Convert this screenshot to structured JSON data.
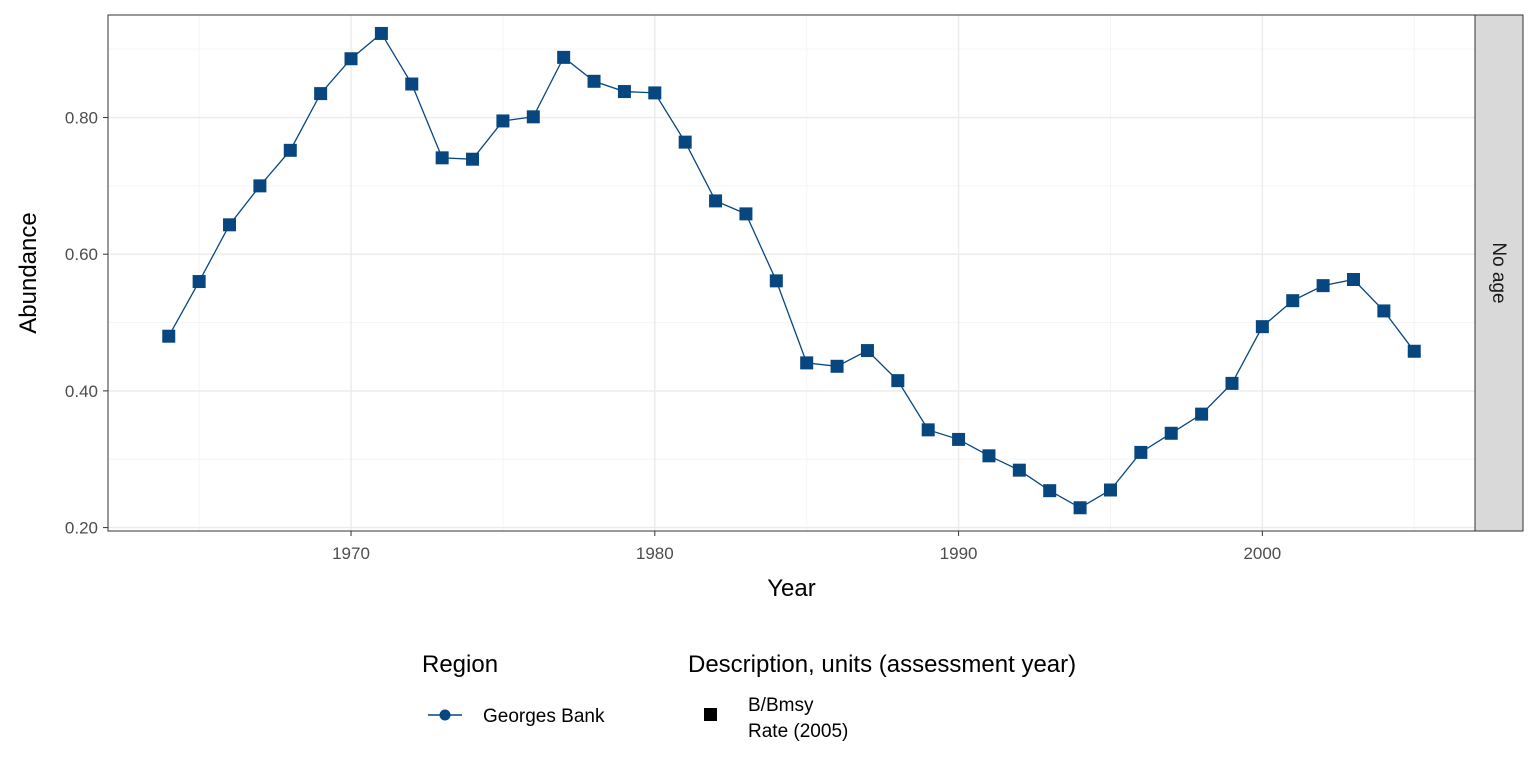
{
  "chart_data": {
    "type": "line",
    "xlabel": "Year",
    "ylabel": "Abundance",
    "xlim": [
      1962,
      2007
    ],
    "ylim": [
      0.195,
      0.95
    ],
    "x_ticks": [
      1970,
      1980,
      1990,
      2000
    ],
    "y_ticks": [
      0.2,
      0.4,
      0.6,
      0.8
    ],
    "y_tick_labels": [
      "0.20",
      "0.40",
      "0.60",
      "0.80"
    ],
    "grid": true,
    "facet_label": "No age",
    "legend_position": "bottom",
    "legend": {
      "region_title": "Region",
      "region_entries": [
        "Georges Bank"
      ],
      "description_title": "Description, units (assessment year)",
      "description_entries": [
        [
          "B/Bmsy",
          "Rate (2005)"
        ]
      ]
    },
    "colors": {
      "series": "#08467F",
      "panel_border": "#333333",
      "grid_major": "#ebebeb",
      "grid_minor": "#f5f5f5",
      "strip_fill": "#d9d9d9"
    },
    "series": [
      {
        "name": "Georges Bank",
        "x": [
          1964,
          1965,
          1966,
          1967,
          1968,
          1969,
          1970,
          1971,
          1972,
          1973,
          1974,
          1975,
          1976,
          1977,
          1978,
          1979,
          1980,
          1981,
          1982,
          1983,
          1984,
          1985,
          1986,
          1987,
          1988,
          1989,
          1990,
          1991,
          1992,
          1993,
          1994,
          1995,
          1996,
          1997,
          1998,
          1999,
          2000,
          2001,
          2002,
          2003,
          2004,
          2005
        ],
        "values": [
          0.48,
          0.56,
          0.643,
          0.7,
          0.752,
          0.835,
          0.886,
          0.923,
          0.849,
          0.741,
          0.739,
          0.795,
          0.801,
          0.888,
          0.853,
          0.838,
          0.836,
          0.764,
          0.678,
          0.659,
          0.561,
          0.441,
          0.436,
          0.459,
          0.415,
          0.343,
          0.329,
          0.305,
          0.284,
          0.254,
          0.229,
          0.255,
          0.31,
          0.338,
          0.366,
          0.411,
          0.494,
          0.532,
          0.554,
          0.563,
          0.517,
          0.458
        ]
      }
    ]
  }
}
